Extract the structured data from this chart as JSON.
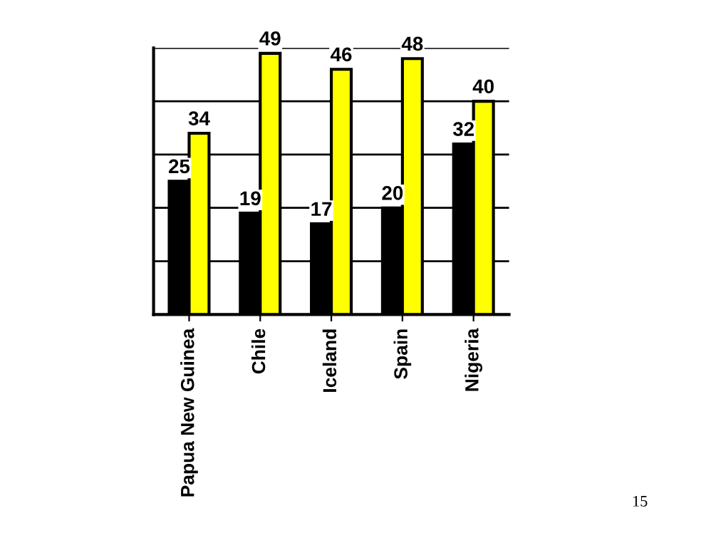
{
  "chart_data": {
    "type": "bar",
    "categories": [
      "Papua New Guinea",
      "Chile",
      "Iceland",
      "Spain",
      "Nigeria"
    ],
    "series": [
      {
        "color": "#000000",
        "values": [
          25,
          19,
          17,
          20,
          32
        ]
      },
      {
        "color": "#ffff00",
        "values": [
          34,
          49,
          46,
          48,
          40
        ]
      }
    ],
    "ylim": [
      0,
      50
    ],
    "yticks": [
      {
        "value": 0,
        "label": null
      },
      {
        "value": 10,
        "label": null
      },
      {
        "value": 20,
        "label": null
      },
      {
        "value": 30,
        "label": null
      },
      {
        "value": 40,
        "label": null
      },
      {
        "value": 50,
        "label": null
      }
    ],
    "tick_labels": "x",
    "grid": "y",
    "data_labels": true,
    "legend": false,
    "annotations": [
      "15"
    ]
  }
}
